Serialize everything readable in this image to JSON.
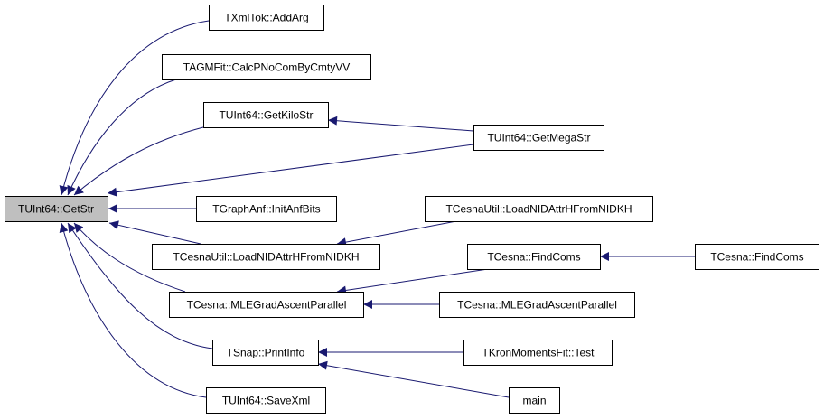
{
  "nodes": {
    "getstr": "TUInt64::GetStr",
    "addarg": "TXmlTok::AddArg",
    "calcpno": "TAGMFit::CalcPNoComByCmtyVV",
    "getkilostr": "TUInt64::GetKiloStr",
    "getmegastr": "TUInt64::GetMegaStr",
    "initanfbits": "TGraphAnf::InitAnfBits",
    "loadnid_a": "TCesnaUtil::LoadNIDAttrHFromNIDKH",
    "loadnid_b": "TCesnaUtil::LoadNIDAttrHFromNIDKH",
    "findcoms_a": "TCesna::FindComs",
    "findcoms_b": "TCesna::FindComs",
    "mlegrad_a": "TCesna::MLEGradAscentParallel",
    "mlegrad_b": "TCesna::MLEGradAscentParallel",
    "printinfo": "TSnap::PrintInfo",
    "test": "TKronMomentsFit::Test",
    "main": "main",
    "savexml": "TUInt64::SaveXml"
  },
  "edges": [
    {
      "from": "addarg",
      "to": "getstr"
    },
    {
      "from": "calcpno",
      "to": "getstr"
    },
    {
      "from": "getkilostr",
      "to": "getstr"
    },
    {
      "from": "getmegastr",
      "to": "getstr"
    },
    {
      "from": "initanfbits",
      "to": "getstr"
    },
    {
      "from": "loadnid_a",
      "to": "getstr"
    },
    {
      "from": "mlegrad_a",
      "to": "getstr"
    },
    {
      "from": "printinfo",
      "to": "getstr"
    },
    {
      "from": "savexml",
      "to": "getstr"
    },
    {
      "from": "getmegastr",
      "to": "getkilostr"
    },
    {
      "from": "loadnid_b",
      "to": "loadnid_a"
    },
    {
      "from": "findcoms_a",
      "to": "mlegrad_a"
    },
    {
      "from": "mlegrad_b",
      "to": "mlegrad_a"
    },
    {
      "from": "test",
      "to": "printinfo"
    },
    {
      "from": "main",
      "to": "printinfo"
    },
    {
      "from": "findcoms_b",
      "to": "findcoms_a"
    }
  ],
  "colors": {
    "edge": "#191970",
    "root_fill": "#bfbfbf",
    "node_fill": "#ffffff"
  }
}
